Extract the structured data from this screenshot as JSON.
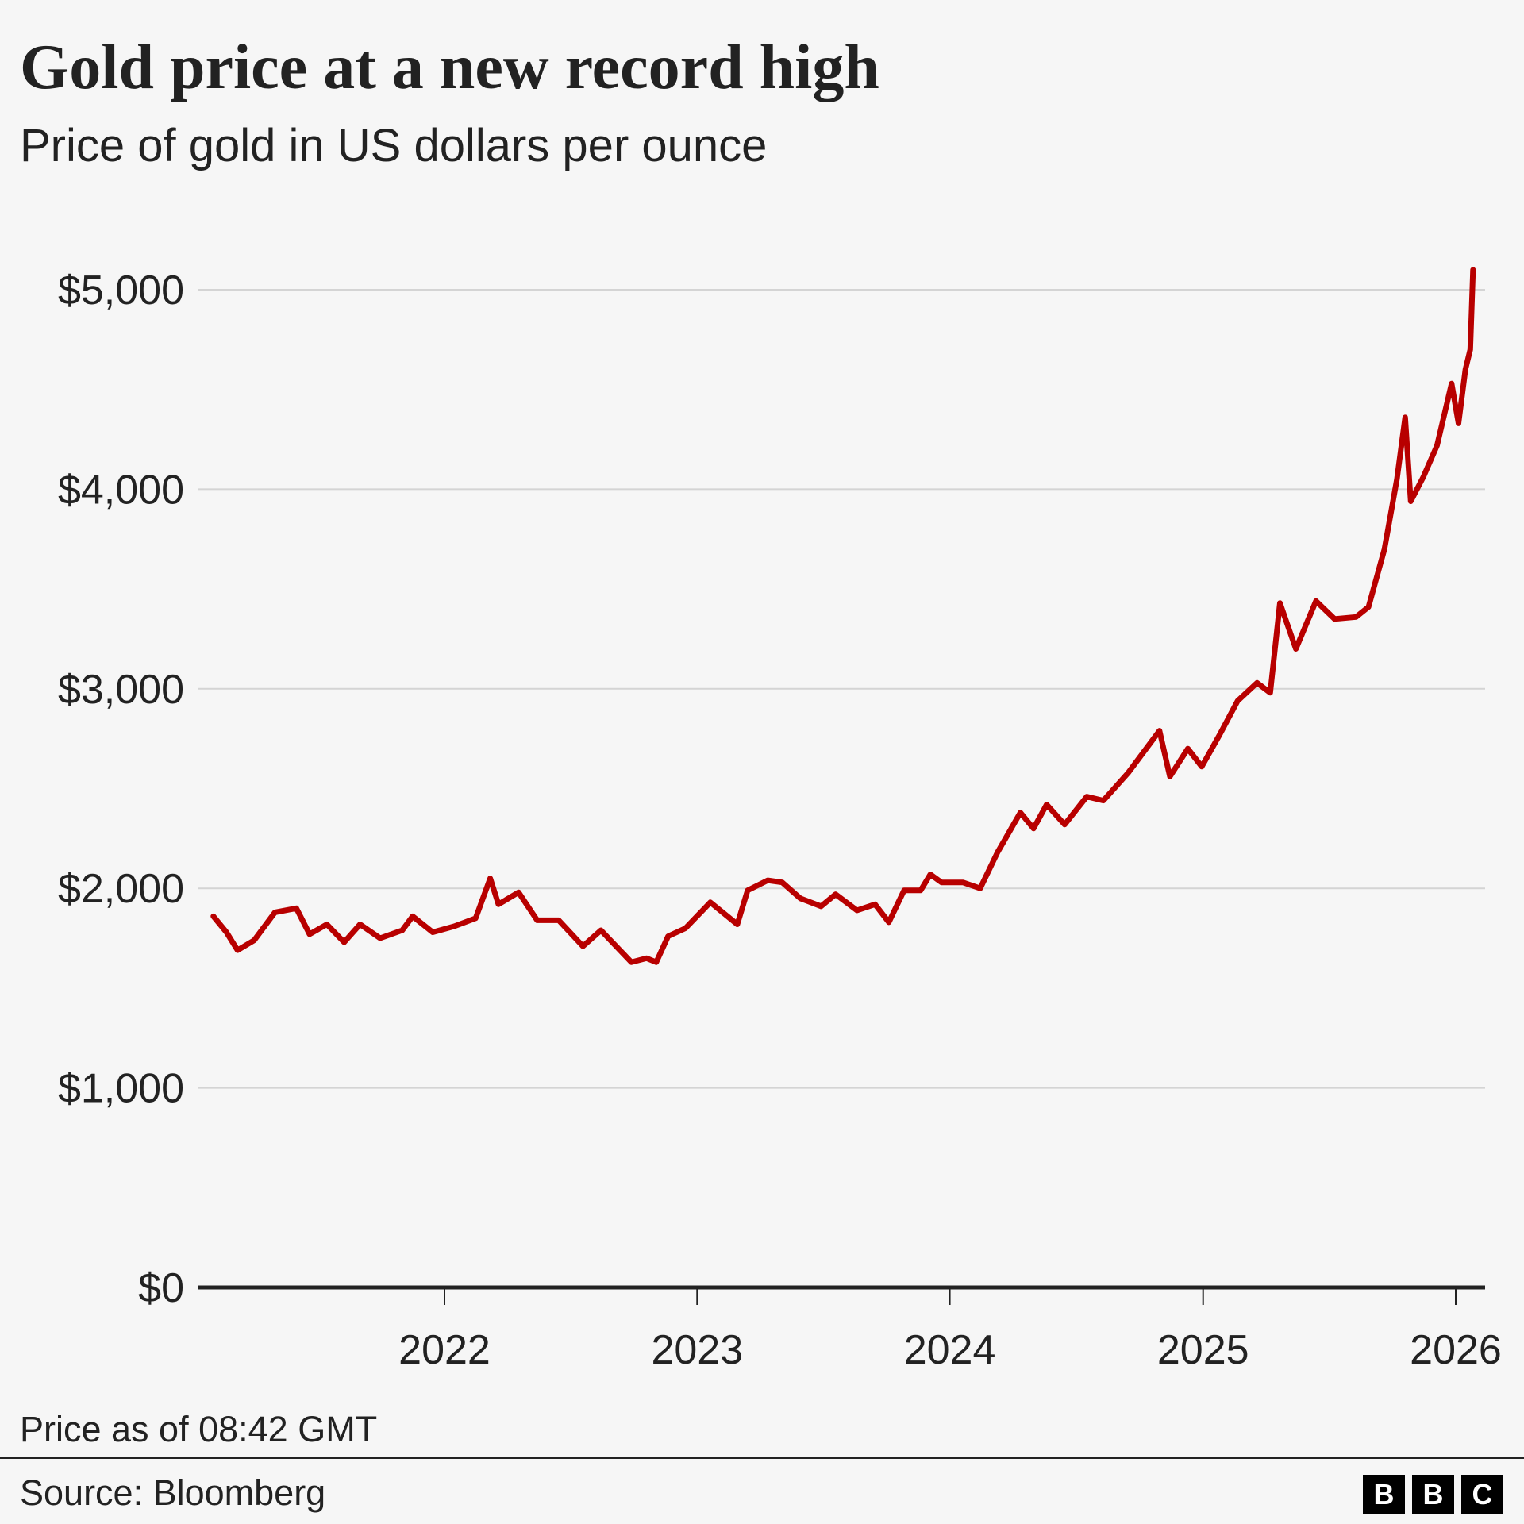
{
  "title": "Gold price at a new record high",
  "subtitle": "Price of gold in US dollars per ounce",
  "note": "Price as of 08:42 GMT",
  "source": "Source: Bloomberg",
  "logo": [
    "B",
    "B",
    "C"
  ],
  "colors": {
    "line": "#b80000",
    "grid": "#d4d4d4",
    "axis": "#222222"
  },
  "chart_data": {
    "type": "line",
    "title": "Gold price at a new record high",
    "ylabel": "",
    "xlabel": "",
    "ylim": [
      0,
      5000
    ],
    "y_ticks": [
      0,
      1000,
      2000,
      3000,
      4000,
      5000
    ],
    "y_tick_labels": [
      "$0",
      "$1,000",
      "$2,000",
      "$3,000",
      "$4,000",
      "$5,000"
    ],
    "x_ticks": [
      "2022",
      "2023",
      "2024",
      "2025",
      "2026"
    ],
    "xlim": [
      "2021-01-01",
      "2026-02-05"
    ],
    "grid": true,
    "series": [
      {
        "x": [
          "2021-02-01",
          "2021-02-20",
          "2021-03-08",
          "2021-04-01",
          "2021-05-01",
          "2021-06-01",
          "2021-06-20",
          "2021-07-15",
          "2021-08-09",
          "2021-09-01",
          "2021-09-30",
          "2021-11-01",
          "2021-11-16",
          "2021-12-15",
          "2022-01-15",
          "2022-02-15",
          "2022-03-08",
          "2022-03-20",
          "2022-04-18",
          "2022-05-15",
          "2022-06-15",
          "2022-07-20",
          "2022-08-15",
          "2022-09-28",
          "2022-10-20",
          "2022-11-03",
          "2022-11-20",
          "2022-12-15",
          "2023-01-20",
          "2023-02-28",
          "2023-03-15",
          "2023-04-13",
          "2023-05-04",
          "2023-05-30",
          "2023-06-29",
          "2023-07-20",
          "2023-08-20",
          "2023-09-15",
          "2023-10-05",
          "2023-10-27",
          "2023-11-20",
          "2023-12-04",
          "2023-12-20",
          "2024-01-20",
          "2024-02-14",
          "2024-03-10",
          "2024-04-12",
          "2024-05-01",
          "2024-05-20",
          "2024-06-15",
          "2024-07-17",
          "2024-08-10",
          "2024-09-15",
          "2024-10-30",
          "2024-11-14",
          "2024-12-10",
          "2024-12-30",
          "2025-01-25",
          "2025-02-20",
          "2025-03-20",
          "2025-04-08",
          "2025-04-22",
          "2025-05-15",
          "2025-06-13",
          "2025-07-10",
          "2025-08-10",
          "2025-08-28",
          "2025-09-20",
          "2025-10-08",
          "2025-10-20",
          "2025-10-28",
          "2025-11-15",
          "2025-12-05",
          "2025-12-26",
          "2026-01-05",
          "2026-01-15",
          "2026-01-22",
          "2026-01-26"
        ],
        "y": [
          1860,
          1780,
          1690,
          1740,
          1880,
          1900,
          1770,
          1820,
          1730,
          1820,
          1750,
          1790,
          1860,
          1780,
          1810,
          1850,
          2050,
          1920,
          1980,
          1840,
          1840,
          1710,
          1790,
          1630,
          1650,
          1630,
          1760,
          1800,
          1930,
          1820,
          1990,
          2040,
          2030,
          1950,
          1910,
          1970,
          1890,
          1920,
          1830,
          1990,
          1990,
          2070,
          2030,
          2030,
          2000,
          2180,
          2380,
          2300,
          2420,
          2320,
          2460,
          2440,
          2580,
          2790,
          2560,
          2700,
          2610,
          2770,
          2940,
          3030,
          2980,
          3430,
          3200,
          3440,
          3350,
          3360,
          3410,
          3700,
          4050,
          4360,
          3940,
          4060,
          4220,
          4530,
          4330,
          4600,
          4700,
          5100
        ]
      }
    ]
  }
}
